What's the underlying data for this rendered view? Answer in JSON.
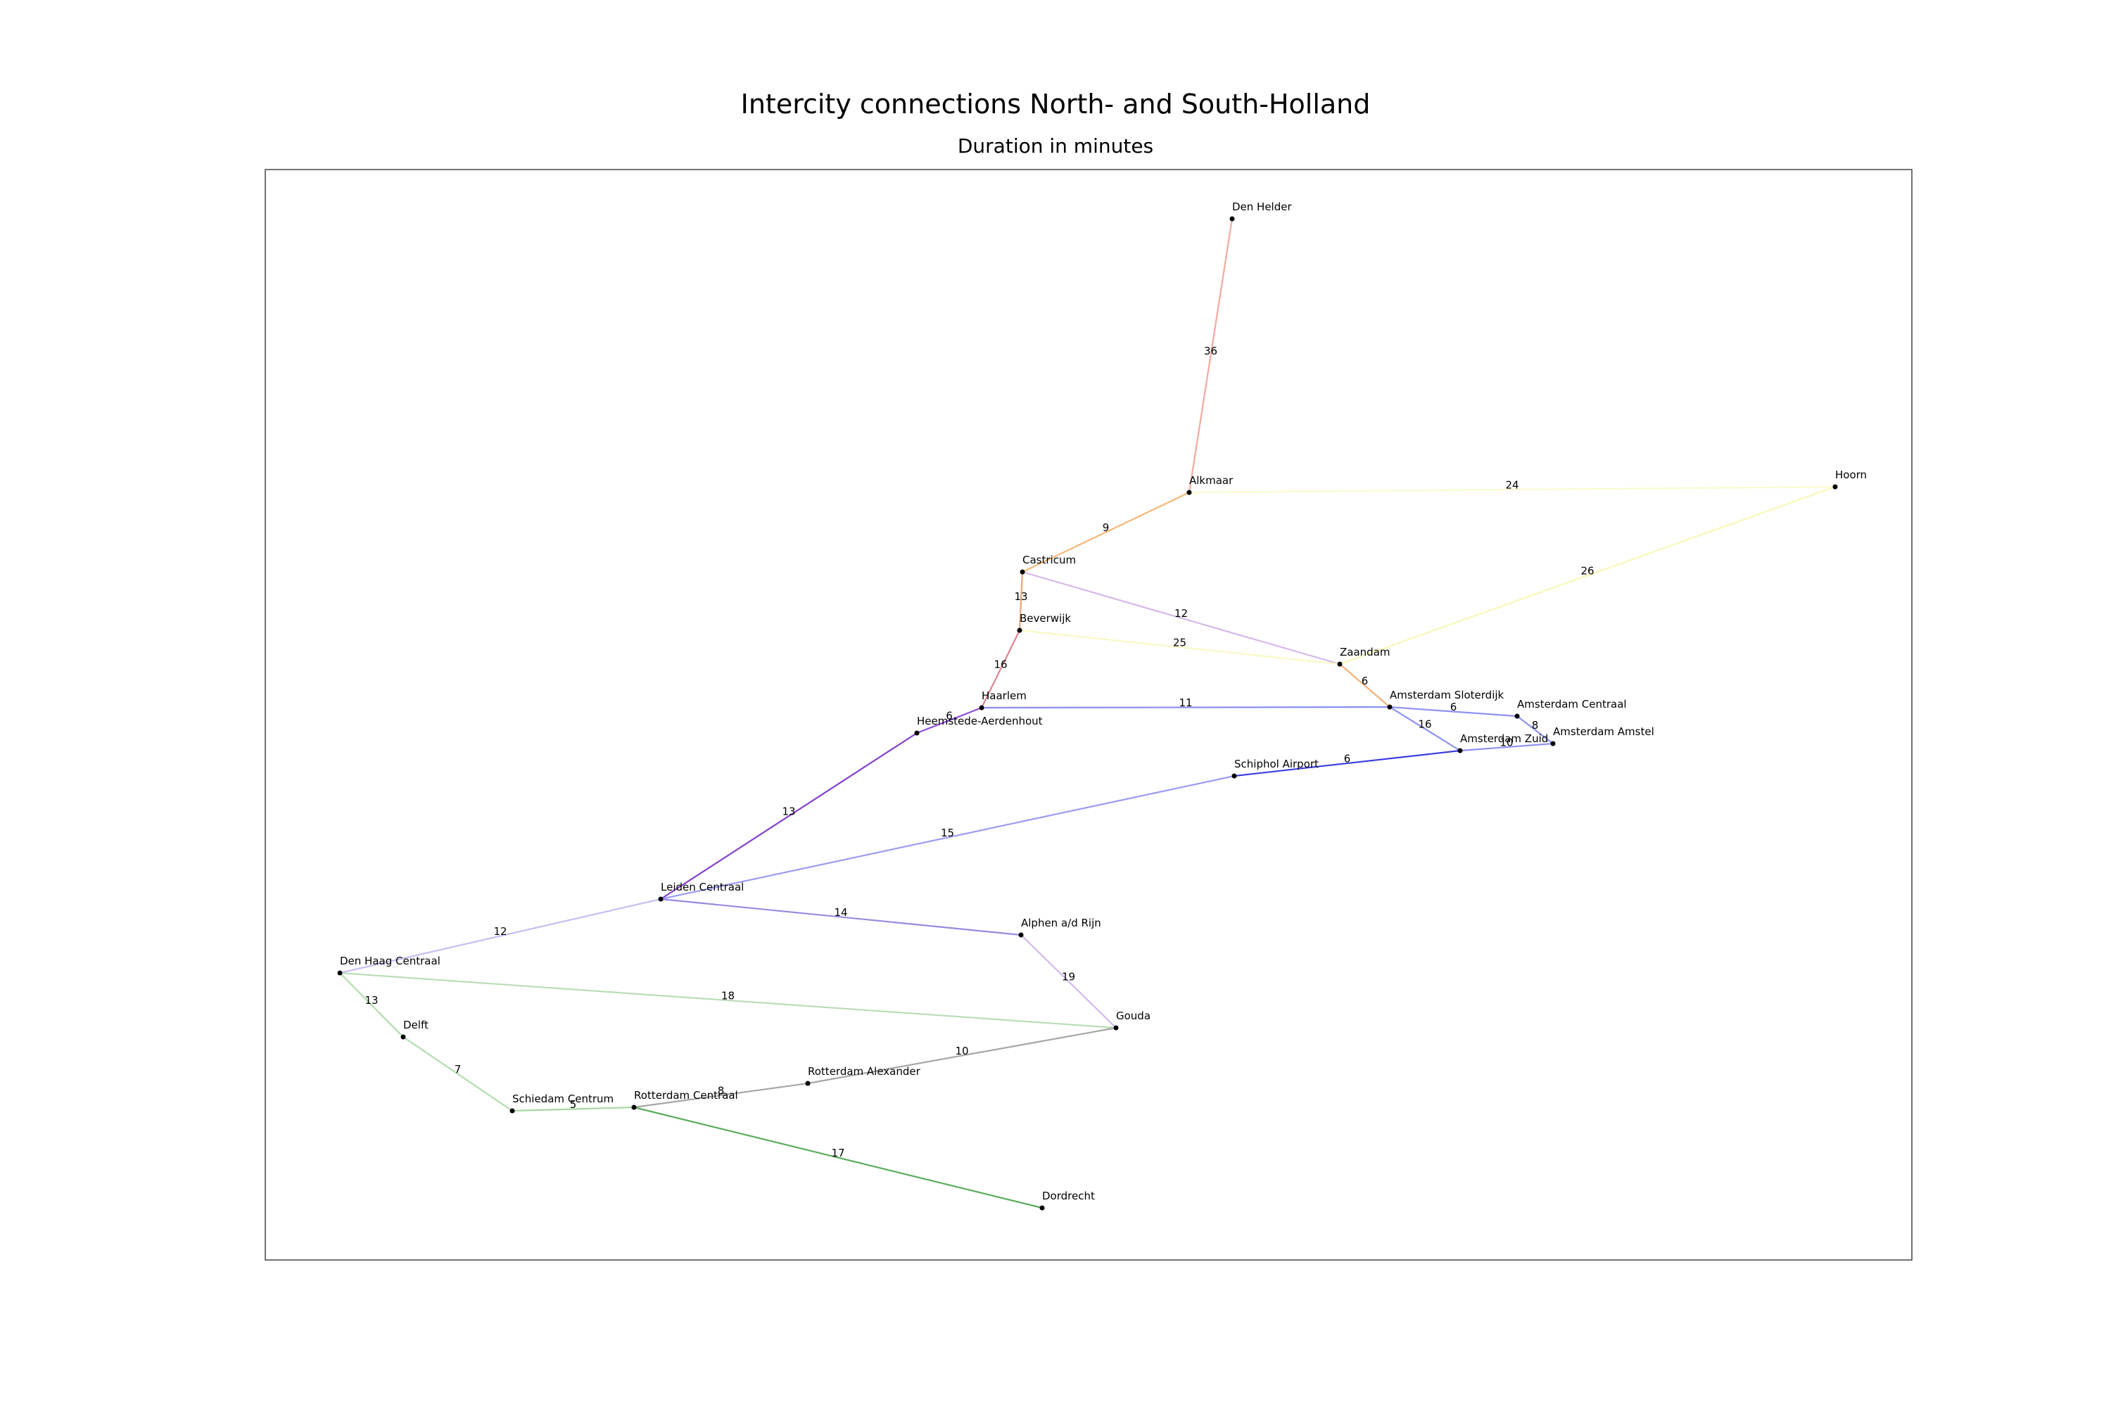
{
  "title": "Intercity connections North- and South-Holland",
  "subtitle": "Duration in minutes",
  "nodes": [
    {
      "id": "den-helder",
      "label": "Den Helder"
    },
    {
      "id": "alkmaar",
      "label": "Alkmaar"
    },
    {
      "id": "hoorn",
      "label": "Hoorn"
    },
    {
      "id": "castricum",
      "label": "Castricum"
    },
    {
      "id": "beverwijk",
      "label": "Beverwijk"
    },
    {
      "id": "zaandam",
      "label": "Zaandam"
    },
    {
      "id": "haarlem",
      "label": "Haarlem"
    },
    {
      "id": "heemstede",
      "label": "Heemstede-Aerdenhout"
    },
    {
      "id": "sloterdijk",
      "label": "Amsterdam Sloterdijk"
    },
    {
      "id": "centraal",
      "label": "Amsterdam Centraal"
    },
    {
      "id": "amstel",
      "label": "Amsterdam Amstel"
    },
    {
      "id": "zuid",
      "label": "Amsterdam Zuid"
    },
    {
      "id": "schiphol",
      "label": "Schiphol Airport"
    },
    {
      "id": "leiden",
      "label": "Leiden Centraal"
    },
    {
      "id": "alphen",
      "label": "Alphen a/d Rijn"
    },
    {
      "id": "denhaag",
      "label": "Den Haag Centraal"
    },
    {
      "id": "delft",
      "label": "Delft"
    },
    {
      "id": "gouda",
      "label": "Gouda"
    },
    {
      "id": "rotalex",
      "label": "Rotterdam Alexander"
    },
    {
      "id": "schiedam",
      "label": "Schiedam Centrum"
    },
    {
      "id": "rotcs",
      "label": "Rotterdam Centraal"
    },
    {
      "id": "dordrecht",
      "label": "Dordrecht"
    }
  ],
  "edges": [
    {
      "from": "den-helder",
      "to": "alkmaar",
      "minutes": "36",
      "color": "#f4a9a0"
    },
    {
      "from": "alkmaar",
      "to": "hoorn",
      "minutes": "24",
      "color": "#fbfbcf"
    },
    {
      "from": "alkmaar",
      "to": "castricum",
      "minutes": "9",
      "color": "#f5b87a"
    },
    {
      "from": "hoorn",
      "to": "zaandam",
      "minutes": "26",
      "color": "#f8f8b8"
    },
    {
      "from": "castricum",
      "to": "beverwijk",
      "minutes": "13",
      "color": "#e9a37a"
    },
    {
      "from": "castricum",
      "to": "zaandam",
      "minutes": "12",
      "color": "#d6b8e8"
    },
    {
      "from": "beverwijk",
      "to": "zaandam",
      "minutes": "25",
      "color": "#f8f8c4"
    },
    {
      "from": "beverwijk",
      "to": "haarlem",
      "minutes": "16",
      "color": "#d9858f"
    },
    {
      "from": "zaandam",
      "to": "sloterdijk",
      "minutes": "6",
      "color": "#f3b07a"
    },
    {
      "from": "haarlem",
      "to": "sloterdijk",
      "minutes": "11",
      "color": "#8a8ef0"
    },
    {
      "from": "haarlem",
      "to": "heemstede",
      "minutes": "6",
      "color": "#8e4fd6"
    },
    {
      "from": "heemstede",
      "to": "leiden",
      "minutes": "13",
      "color": "#8440cc"
    },
    {
      "from": "sloterdijk",
      "to": "centraal",
      "minutes": "6",
      "color": "#8e92f0"
    },
    {
      "from": "sloterdijk",
      "to": "zuid",
      "minutes": "16",
      "color": "#8e92f0"
    },
    {
      "from": "centraal",
      "to": "amstel",
      "minutes": "8",
      "color": "#8e92f0"
    },
    {
      "from": "zuid",
      "to": "amstel",
      "minutes": "10",
      "color": "#8e92f0"
    },
    {
      "from": "schiphol",
      "to": "zuid",
      "minutes": "6",
      "color": "#3a3de0"
    },
    {
      "from": "leiden",
      "to": "schiphol",
      "minutes": "15",
      "color": "#9a9cf2"
    },
    {
      "from": "leiden",
      "to": "alphen",
      "minutes": "14",
      "color": "#9a88e0"
    },
    {
      "from": "leiden",
      "to": "denhaag",
      "minutes": "12",
      "color": "#c4bff2"
    },
    {
      "from": "alphen",
      "to": "gouda",
      "minutes": "19",
      "color": "#d2b8ea"
    },
    {
      "from": "denhaag",
      "to": "gouda",
      "minutes": "18",
      "color": "#b9deb5"
    },
    {
      "from": "denhaag",
      "to": "delft",
      "minutes": "13",
      "color": "#b2dcae"
    },
    {
      "from": "delft",
      "to": "schiedam",
      "minutes": "7",
      "color": "#b2dcae"
    },
    {
      "from": "schiedam",
      "to": "rotcs",
      "minutes": "5",
      "color": "#a8d6a2"
    },
    {
      "from": "gouda",
      "to": "rotalex",
      "minutes": "10",
      "color": "#a6a6a6"
    },
    {
      "from": "rotalex",
      "to": "rotcs",
      "minutes": "8",
      "color": "#a6a6a6"
    },
    {
      "from": "rotcs",
      "to": "dordrecht",
      "minutes": "17",
      "color": "#5aac5a"
    }
  ]
}
